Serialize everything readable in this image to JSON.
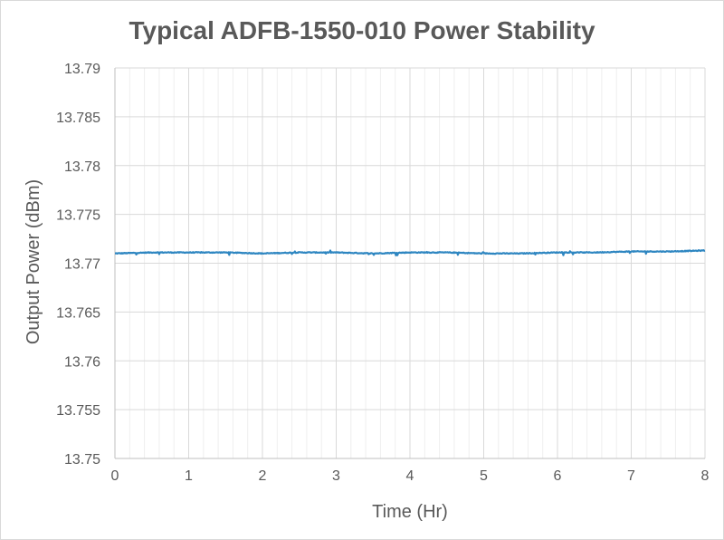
{
  "chart_data": {
    "type": "line",
    "title": "Typical ADFB-1550-010 Power Stability",
    "xlabel": "Time (Hr)",
    "ylabel": "Output Power (dBm)",
    "xlim": [
      0,
      8
    ],
    "ylim": [
      13.75,
      13.79
    ],
    "x_ticks": [
      0,
      1,
      2,
      3,
      4,
      5,
      6,
      7,
      8
    ],
    "y_ticks": [
      13.75,
      13.755,
      13.76,
      13.765,
      13.77,
      13.775,
      13.78,
      13.785,
      13.79
    ],
    "x_tick_labels": [
      "0",
      "1",
      "2",
      "3",
      "4",
      "5",
      "6",
      "7",
      "8"
    ],
    "y_tick_labels": [
      "13.75",
      "13.755",
      "13.76",
      "13.765",
      "13.77",
      "13.775",
      "13.78",
      "13.785",
      "13.79"
    ],
    "x_minor_step": 0.2,
    "grid": true,
    "legend": "none",
    "series": [
      {
        "color": "#2e86c1",
        "x": [
          0,
          0.5,
          1,
          1.5,
          2,
          2.5,
          3,
          3.5,
          4,
          4.5,
          5,
          5.5,
          6,
          6.5,
          7,
          7.5,
          8
        ],
        "y": [
          13.771,
          13.7711,
          13.7711,
          13.7711,
          13.771,
          13.7711,
          13.7711,
          13.771,
          13.7711,
          13.7711,
          13.771,
          13.771,
          13.7711,
          13.7711,
          13.7712,
          13.7712,
          13.7713
        ]
      }
    ]
  }
}
